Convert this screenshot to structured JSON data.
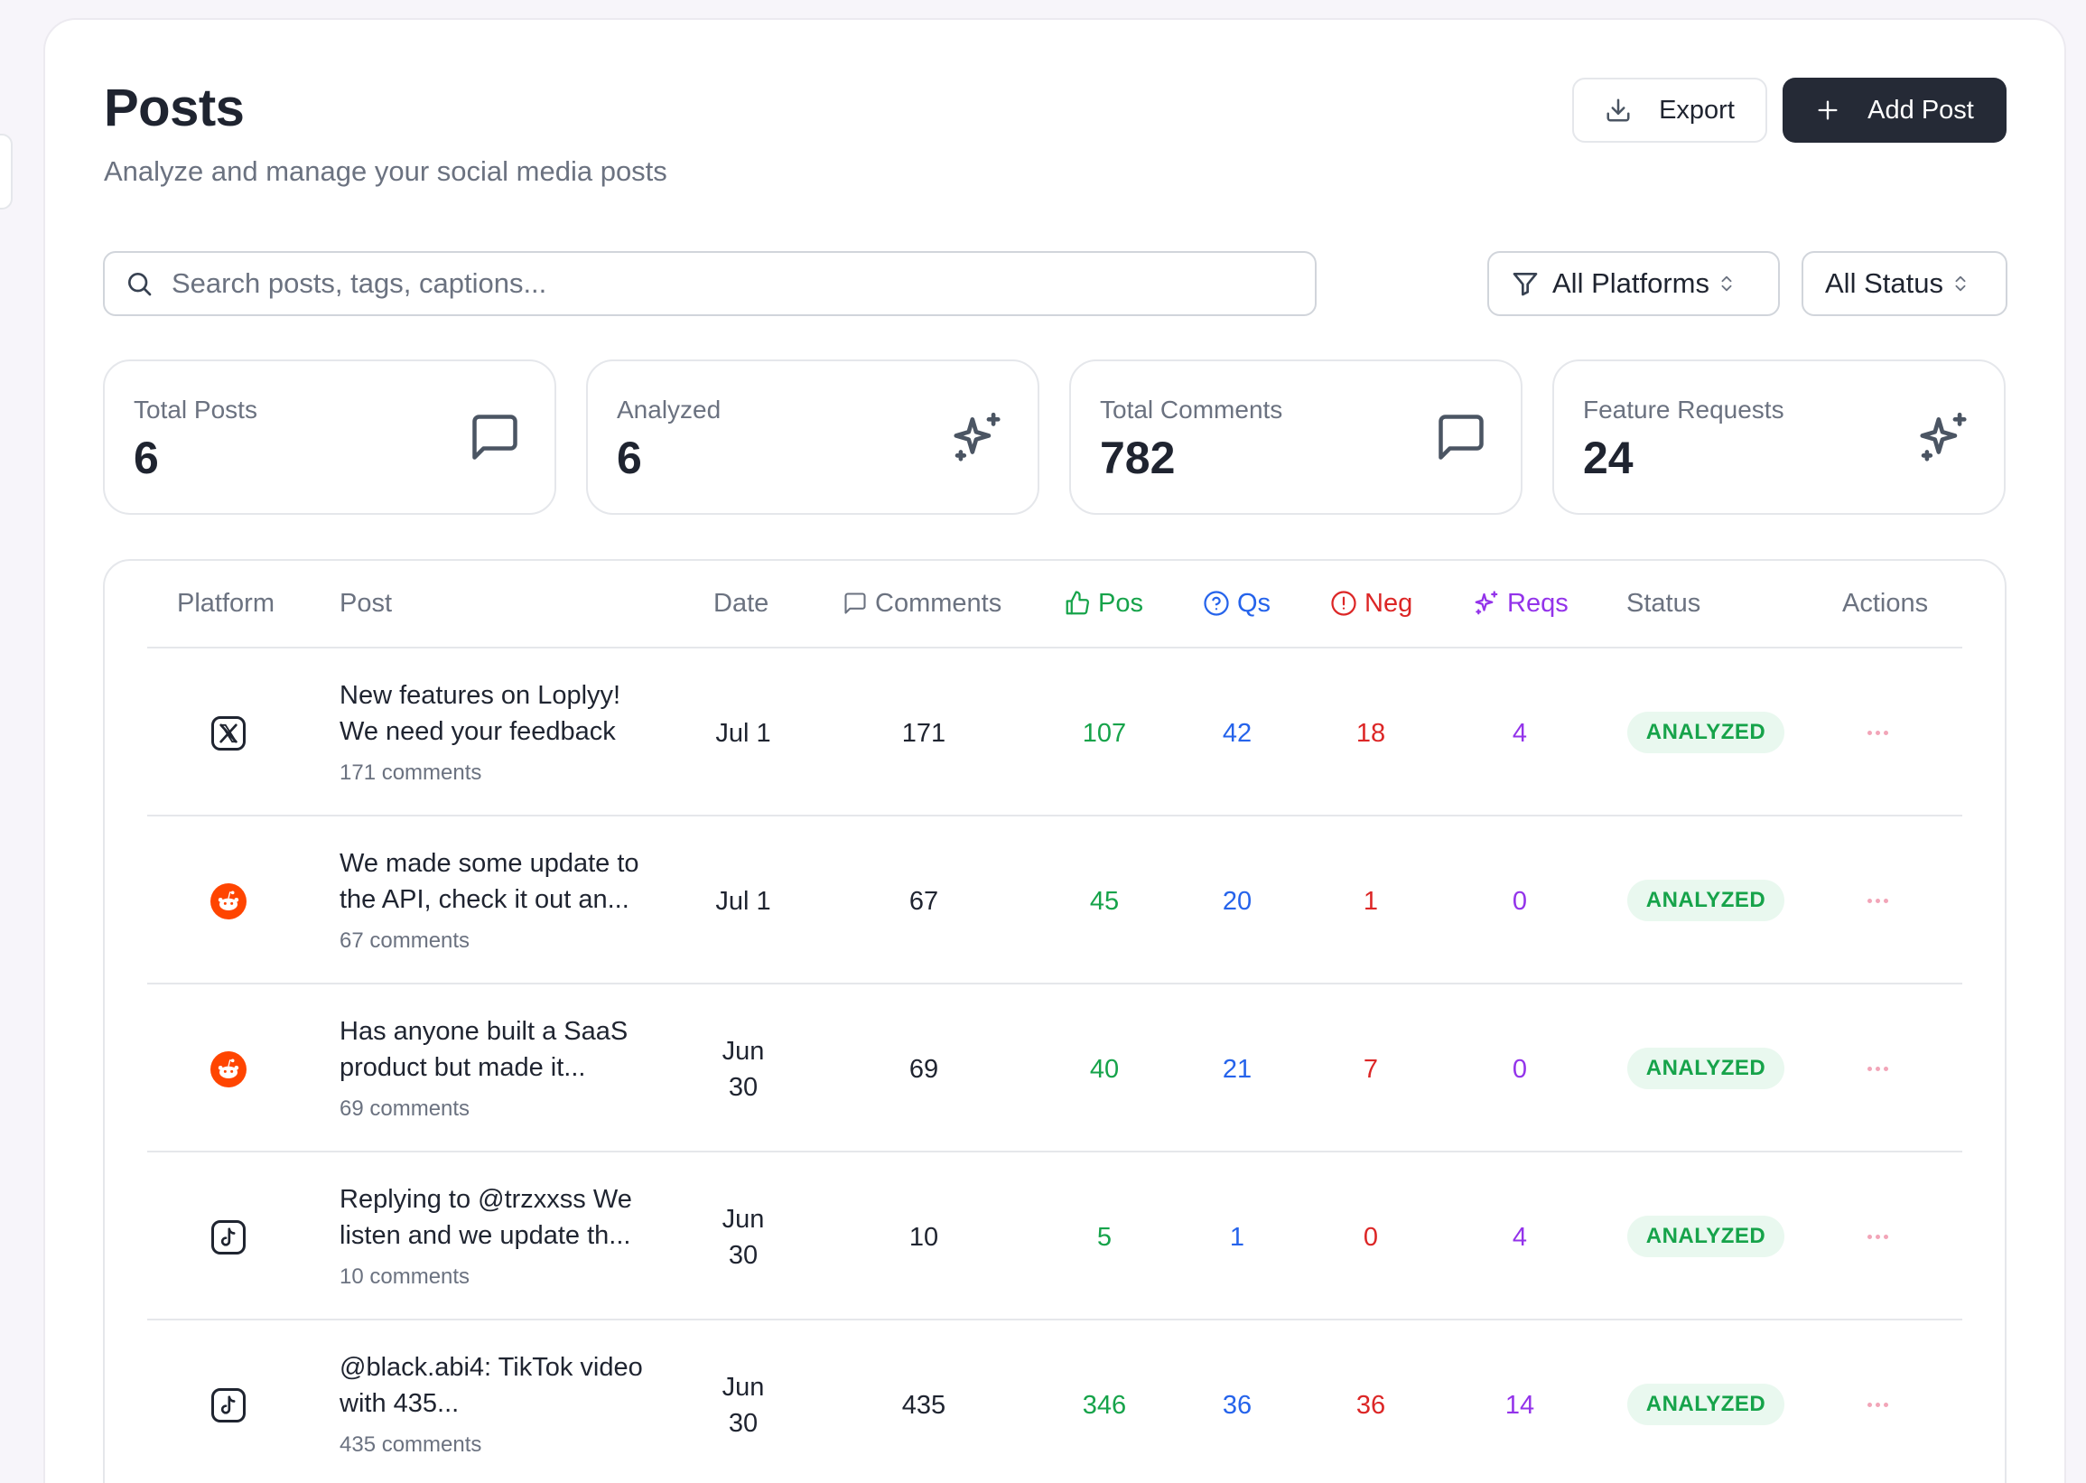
{
  "header": {
    "title": "Posts",
    "subtitle": "Analyze and manage your social media posts",
    "export_label": "Export",
    "add_label": "Add Post"
  },
  "search": {
    "placeholder": "Search posts, tags, captions..."
  },
  "filters": {
    "platform": "All Platforms",
    "status": "All Status"
  },
  "stats": [
    {
      "label": "Total Posts",
      "value": "6",
      "icon": "message-square-icon"
    },
    {
      "label": "Analyzed",
      "value": "6",
      "icon": "sparkles-icon"
    },
    {
      "label": "Total Comments",
      "value": "782",
      "icon": "message-square-icon"
    },
    {
      "label": "Feature Requests",
      "value": "24",
      "icon": "sparkles-icon"
    }
  ],
  "table": {
    "columns": {
      "platform": "Platform",
      "post": "Post",
      "date": "Date",
      "comments": "Comments",
      "pos": "Pos",
      "qs": "Qs",
      "neg": "Neg",
      "reqs": "Reqs",
      "status": "Status",
      "actions": "Actions"
    },
    "rows": [
      {
        "platform": "x",
        "title": "New features on Loplyy! We need your feedback",
        "sub": "171 comments",
        "date_l1": "Jul 1",
        "date_l2": "",
        "comments": "171",
        "pos": "107",
        "qs": "42",
        "neg": "18",
        "reqs": "4",
        "status": "ANALYZED"
      },
      {
        "platform": "reddit",
        "title": "We made some update to the API, check it out an...",
        "sub": "67 comments",
        "date_l1": "Jul 1",
        "date_l2": "",
        "comments": "67",
        "pos": "45",
        "qs": "20",
        "neg": "1",
        "reqs": "0",
        "status": "ANALYZED"
      },
      {
        "platform": "reddit",
        "title": "Has anyone built a SaaS product but made it...",
        "sub": "69 comments",
        "date_l1": "Jun",
        "date_l2": "30",
        "comments": "69",
        "pos": "40",
        "qs": "21",
        "neg": "7",
        "reqs": "0",
        "status": "ANALYZED"
      },
      {
        "platform": "tiktok",
        "title": "Replying to @trzxxss We listen and we update th...",
        "sub": "10 comments",
        "date_l1": "Jun",
        "date_l2": "30",
        "comments": "10",
        "pos": "5",
        "qs": "1",
        "neg": "0",
        "reqs": "4",
        "status": "ANALYZED"
      },
      {
        "platform": "tiktok",
        "title": "@black.abi4: TikTok video with 435...",
        "sub": "435 comments",
        "date_l1": "Jun",
        "date_l2": "30",
        "comments": "435",
        "pos": "346",
        "qs": "36",
        "neg": "36",
        "reqs": "14",
        "status": "ANALYZED"
      }
    ]
  },
  "colors": {
    "positive": "#16a34a",
    "questions": "#2563eb",
    "negative": "#dc2626",
    "requests": "#9333ea",
    "reddit": "#ff4500",
    "primary_button": "#252a36"
  }
}
